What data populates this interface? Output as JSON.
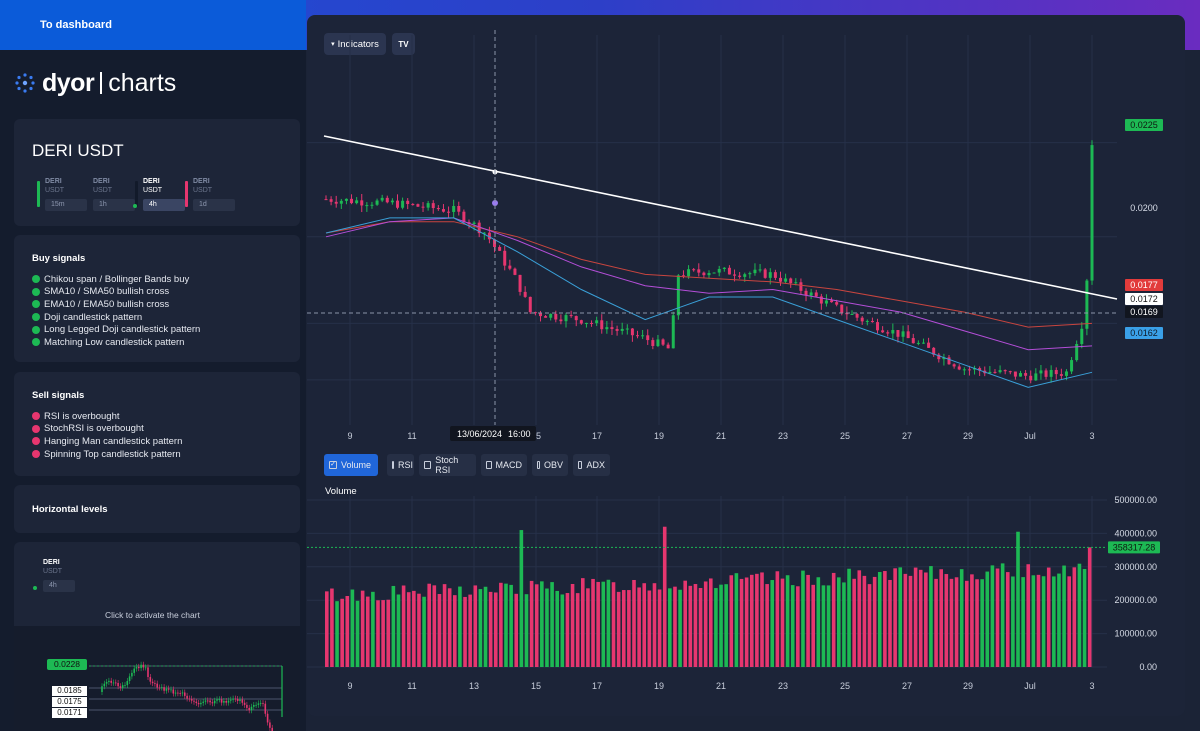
{
  "header": {
    "dashboard_label": "To dashboard"
  },
  "logo": {
    "brand": "dyor",
    "product": "charts"
  },
  "pair": {
    "title": "DERI USDT",
    "base": "DERI",
    "quote": "USDT",
    "timeframes": [
      "15m",
      "1h",
      "4h",
      "1d"
    ],
    "active_timeframe": "4h"
  },
  "buy_signals": {
    "title": "Buy signals",
    "items": [
      "Chikou span / Bollinger Bands buy",
      "SMA10 / SMA50 bullish cross",
      "EMA10 / EMA50 bullish cross",
      "Doji candlestick pattern",
      "Long Legged Doji candlestick pattern",
      "Matching Low candlestick pattern"
    ]
  },
  "sell_signals": {
    "title": "Sell signals",
    "items": [
      "RSI is overbought",
      "StochRSI is overbought",
      "Hanging Man candlestick pattern",
      "Spinning Top candlestick pattern"
    ]
  },
  "horizontal_levels": {
    "title": "Horizontal levels"
  },
  "mini_chart": {
    "base": "DERI",
    "quote": "USDT",
    "timeframe": "4h",
    "activate_hint": "Click to activate the chart",
    "price_labels": [
      "0.0228",
      "0.0185",
      "0.0175",
      "0.0171"
    ]
  },
  "toolbar": {
    "indicators_label": "Indicators",
    "tv_logo": "TV"
  },
  "price_axis_labels": [
    {
      "text": "0.0225",
      "kind": "green"
    },
    {
      "text": "0.0200",
      "kind": "plain"
    },
    {
      "text": "0.0177",
      "kind": "red"
    },
    {
      "text": "0.0172",
      "kind": "white"
    },
    {
      "text": "0.0169",
      "kind": "dark"
    },
    {
      "text": "0.0162",
      "kind": "blue"
    }
  ],
  "date_axis": [
    "9",
    "11",
    "15",
    "17",
    "19",
    "21",
    "23",
    "25",
    "27",
    "29",
    "Jul",
    "3"
  ],
  "crosshair": {
    "date": "13/06/2024",
    "time": "16:00"
  },
  "indicator_tabs": [
    {
      "label": "Volume",
      "checked": true
    },
    {
      "label": "RSI",
      "checked": false
    },
    {
      "label": "Stoch RSI",
      "checked": false
    },
    {
      "label": "MACD",
      "checked": false
    },
    {
      "label": "OBV",
      "checked": false
    },
    {
      "label": "ADX",
      "checked": false
    }
  ],
  "volume_panel": {
    "title": "Volume",
    "axis_labels": [
      "500000.00",
      "400000.00",
      "300000.00",
      "200000.00",
      "100000.00",
      "0.00"
    ],
    "current_label": "358317.28",
    "date_axis": [
      "9",
      "11",
      "13",
      "15",
      "17",
      "19",
      "21",
      "23",
      "25",
      "27",
      "29",
      "Jul",
      "3"
    ]
  },
  "colors": {
    "up": "#1db954",
    "down": "#e6366f",
    "accent": "#2066d9",
    "trendline": "#ffffff",
    "ma_blue": "#3aa0d8",
    "ma_purple": "#b44ed8",
    "ma_red": "#c8453f"
  },
  "chart_data": [
    {
      "type": "line",
      "title": "DERI USDT 4h",
      "x": [
        "9",
        "11",
        "13",
        "15",
        "17",
        "19",
        "21",
        "23",
        "25",
        "27",
        "29",
        "Jul",
        "3"
      ],
      "series": [
        {
          "values": [
            0.021,
            0.0209,
            0.0205,
            0.0188,
            0.0178,
            0.0173,
            0.0191,
            0.019,
            0.0178,
            0.0172,
            0.0164,
            0.0163,
            0.0225
          ]
        }
      ],
      "ylim": [
        0.015,
        0.0235
      ]
    },
    {
      "type": "bar",
      "title": "Volume",
      "x": [
        "9",
        "11",
        "13",
        "15",
        "17",
        "19",
        "21",
        "23",
        "25",
        "27",
        "29",
        "Jul",
        "3"
      ],
      "series": [
        {
          "values": [
            230000,
            230000,
            250000,
            300000,
            320000,
            300000,
            280000,
            270000,
            280000,
            290000,
            290000,
            280000,
            358317
          ]
        }
      ],
      "ylim": [
        0,
        500000
      ]
    }
  ]
}
